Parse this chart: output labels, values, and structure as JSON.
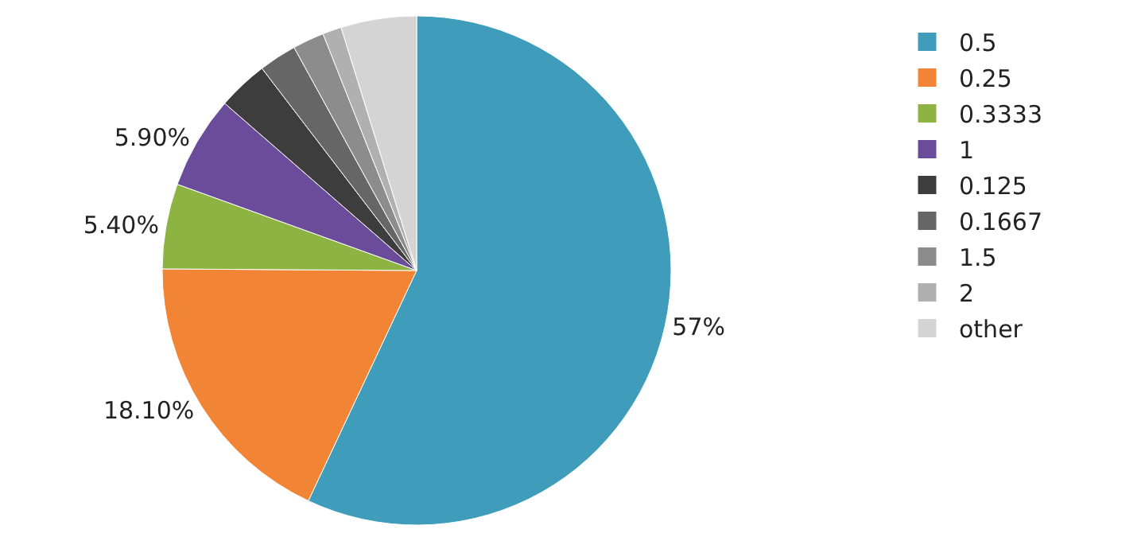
{
  "chart_data": {
    "type": "pie",
    "categories": [
      "0.5",
      "0.25",
      "0.3333",
      "1",
      "0.125",
      "0.1667",
      "1.5",
      "2",
      "other"
    ],
    "values": [
      57,
      18.1,
      5.4,
      5.9,
      3.2,
      2.4,
      2.0,
      1.2,
      4.8
    ],
    "value_labels": [
      "57%",
      "18.10%",
      "5.40%",
      "5.90%",
      null,
      null,
      null,
      null,
      null
    ],
    "colors": [
      "#3f9dbb",
      "#f28535",
      "#8db443",
      "#6b4c9a",
      "#3d3d3d",
      "#666666",
      "#8c8c8c",
      "#b0b0b0",
      "#d4d4d4"
    ],
    "legend": "top right"
  }
}
